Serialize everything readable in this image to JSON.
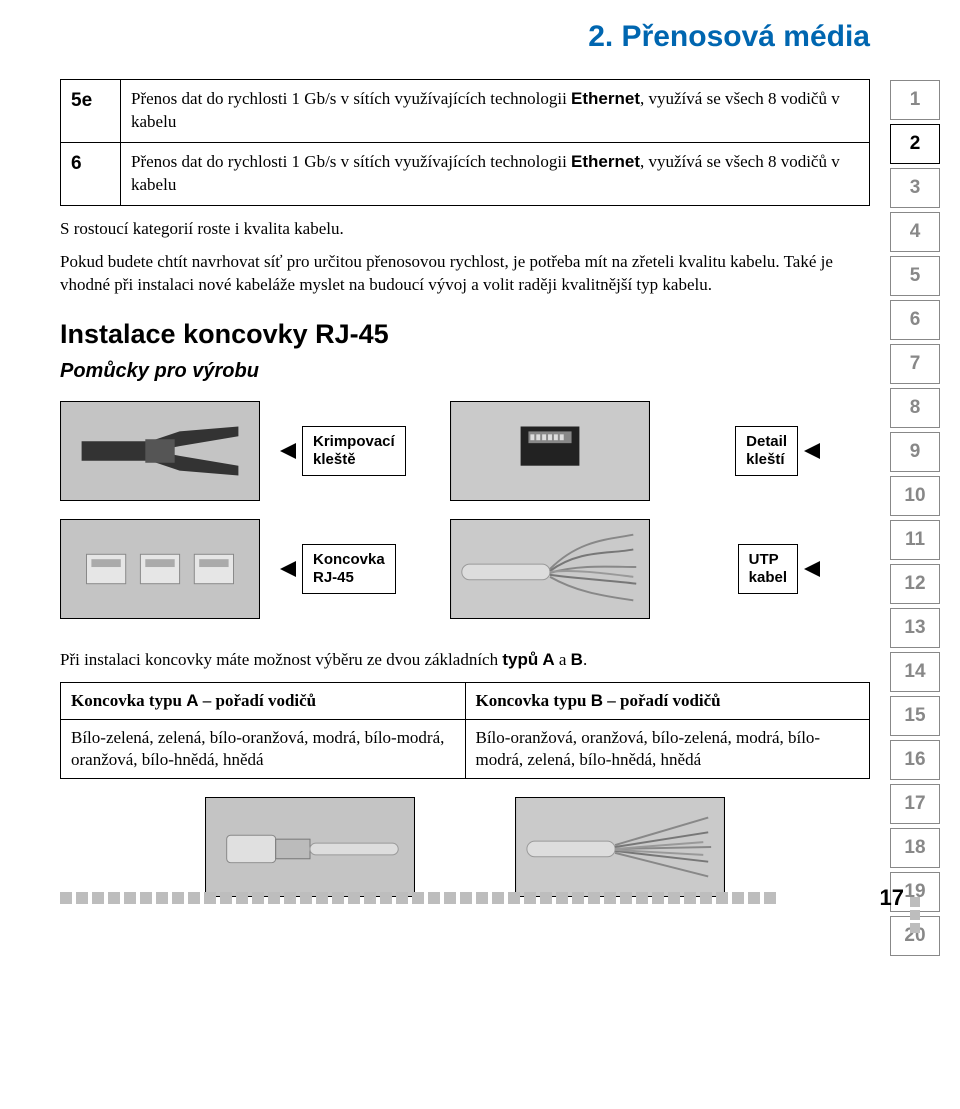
{
  "colors": {
    "title": "#0066b0",
    "text": "#000000",
    "tab_border": "#888888",
    "tab_border_active": "#000000",
    "image_bg": "#c0c0c0",
    "square": "#bdbdbd"
  },
  "page_title": "2. Přenosová média",
  "cat_table": [
    {
      "code": "5e",
      "desc_pre": "Přenos dat do rychlosti 1 Gb/s v sítích využívajících technologii ",
      "eth": "Ethernet",
      "desc_post": ", využívá se všech 8 vodičů v kabelu"
    },
    {
      "code": "6",
      "desc_pre": "Přenos dat do rychlosti 1 Gb/s v sítích využívajících technologii ",
      "eth": "Ethernet",
      "desc_post": ", využívá se všech 8 vodičů v kabelu"
    }
  ],
  "para1": "S rostoucí kategorií roste i kvalita kabelu.",
  "para2": "Pokud budete chtít navrhovat síť pro určitou přenosovou rychlost, je potřeba mít na zřeteli kvalitu kabelu. Také je vhodné při instalaci nové kabeláže myslet na budoucí vývoj a volit raději kvalitnější typ kabelu.",
  "section_heading": "Instalace koncovky RJ-45",
  "sub_heading": "Pomůcky pro výrobu",
  "labels": {
    "krimp": "Krimpovací\nkleště",
    "detail": "Detail\nkleští",
    "rj45": "Koncovka\nRJ-45",
    "utp": "UTP\nkabel"
  },
  "type_text_pre": "Při instalaci koncovky máte možnost výběru ze dvou základních ",
  "type_text_bold": "typů A",
  "type_text_mid": " a ",
  "type_text_bold2": "B",
  "type_text_post": ".",
  "type_table": {
    "head_a_pre": "Koncovka typu ",
    "head_a_bold": "A",
    "head_a_post": " – pořadí vodičů",
    "head_b_pre": "Koncovka typu ",
    "head_b_bold": "B",
    "head_b_post": " – pořadí vodičů",
    "row_a": "Bílo-zelená, zelená, bílo-oranžová, modrá, bílo-modrá, oranžová, bílo-hnědá, hnědá",
    "row_b": "Bílo-oranžová, oranžová, bílo-zelená, modrá, bílo-modrá, zelená, bílo-hnědá, hnědá"
  },
  "tabs": {
    "count": 20,
    "active": 2
  },
  "page_number": "17",
  "footer_squares": 45
}
